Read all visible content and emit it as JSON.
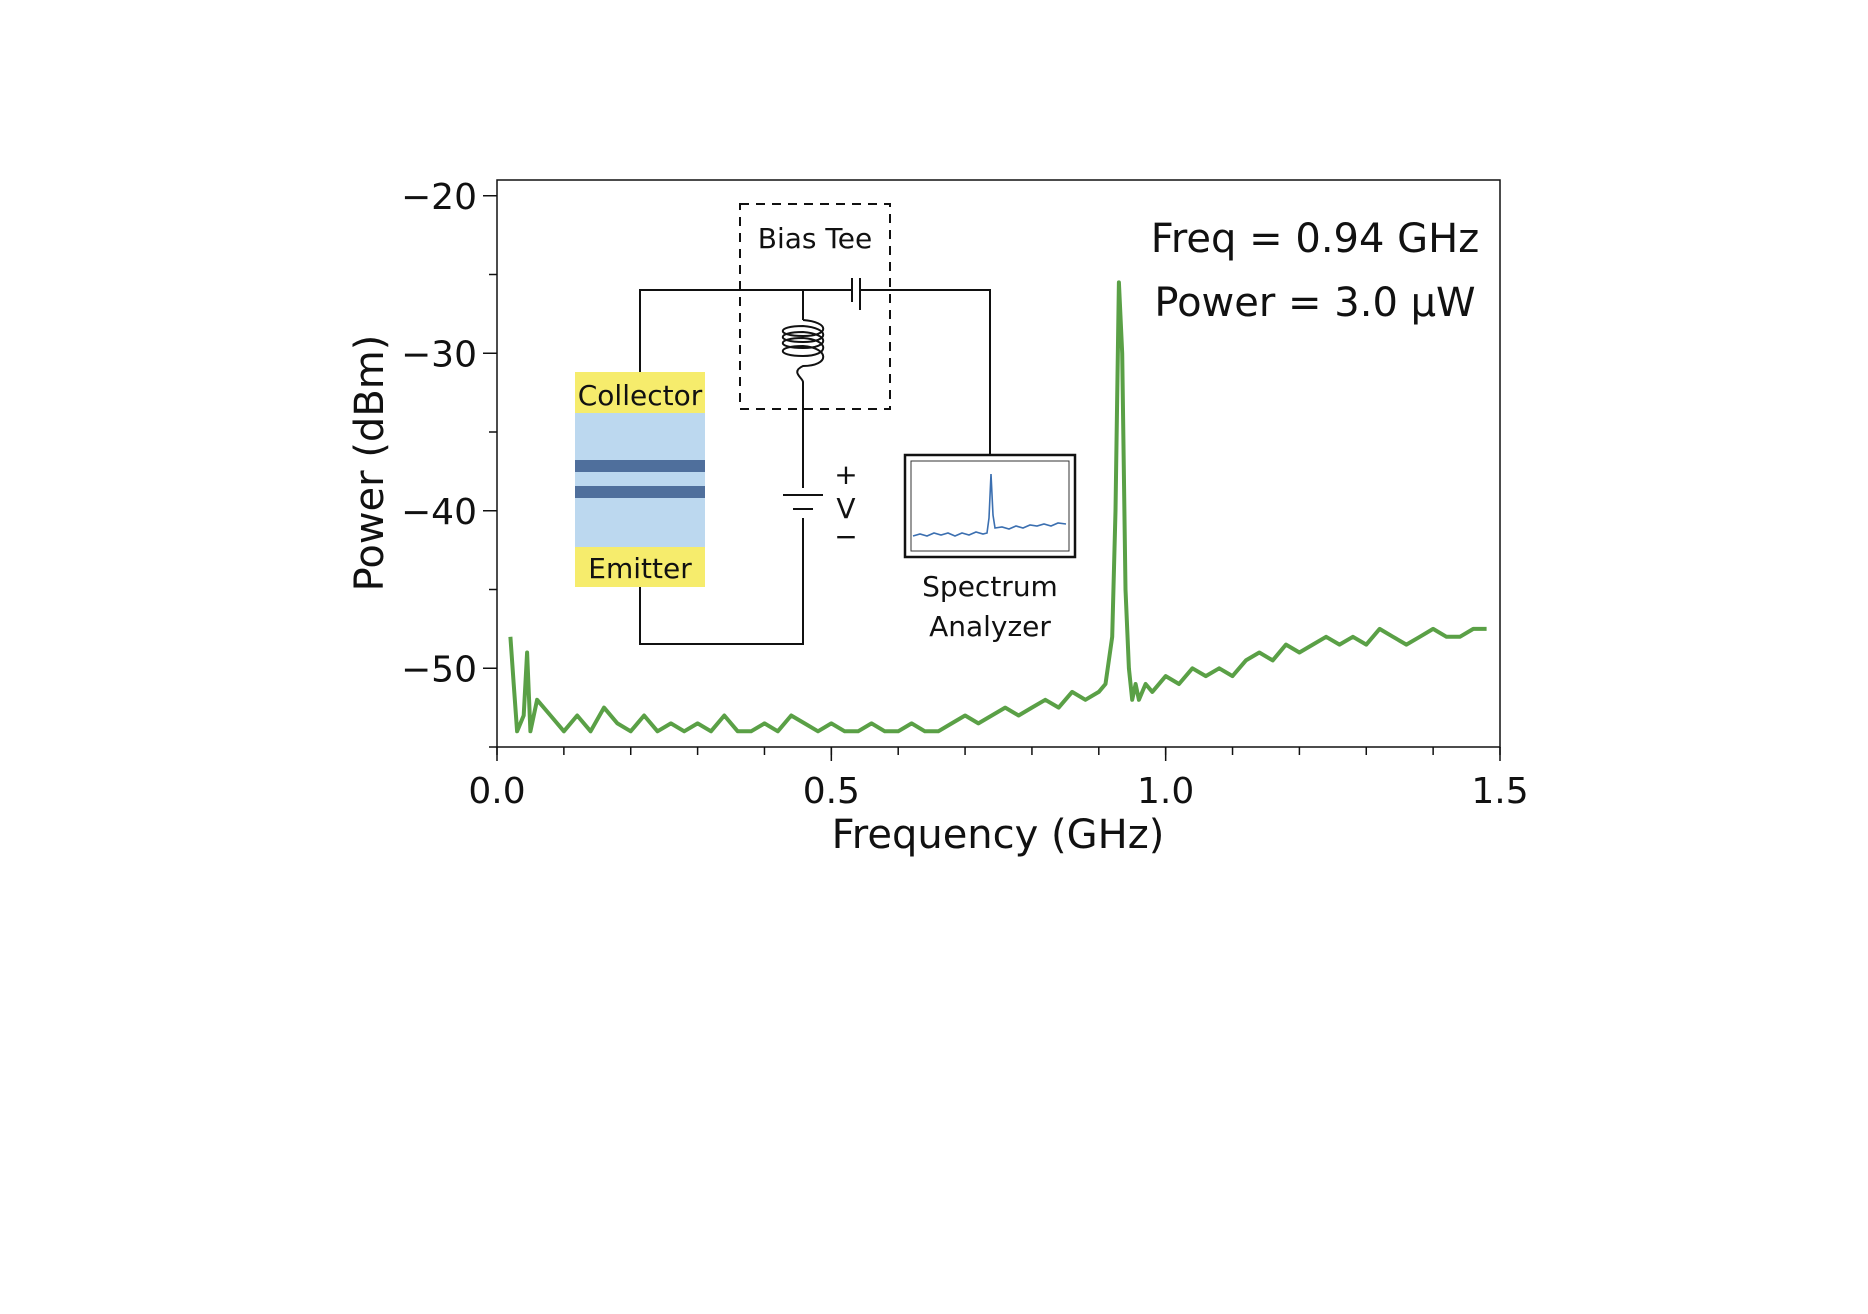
{
  "chart_data": {
    "type": "line",
    "title": "",
    "xlabel": "Frequency (GHz)",
    "ylabel": "Power (dBm)",
    "xlim": [
      0.0,
      1.5
    ],
    "ylim": [
      -55,
      -19
    ],
    "x_ticks": [
      "0.0",
      "0.5",
      "1.0",
      "1.5"
    ],
    "y_ticks": [
      "−20",
      "−30",
      "−40",
      "−50"
    ],
    "x_tick_values": [
      0.0,
      0.5,
      1.0,
      1.5
    ],
    "y_tick_values": [
      -20,
      -30,
      -40,
      -50
    ],
    "grid": false,
    "series": [
      {
        "name": "",
        "color": "#5aa046",
        "x": [
          0.02,
          0.025,
          0.03,
          0.04,
          0.045,
          0.05,
          0.06,
          0.08,
          0.1,
          0.12,
          0.14,
          0.16,
          0.18,
          0.2,
          0.22,
          0.24,
          0.26,
          0.28,
          0.3,
          0.32,
          0.34,
          0.36,
          0.38,
          0.4,
          0.42,
          0.44,
          0.46,
          0.48,
          0.5,
          0.52,
          0.54,
          0.56,
          0.58,
          0.6,
          0.62,
          0.64,
          0.66,
          0.68,
          0.7,
          0.72,
          0.74,
          0.76,
          0.78,
          0.8,
          0.82,
          0.84,
          0.86,
          0.88,
          0.9,
          0.91,
          0.92,
          0.925,
          0.93,
          0.935,
          0.94,
          0.945,
          0.95,
          0.955,
          0.96,
          0.97,
          0.98,
          1.0,
          1.02,
          1.04,
          1.06,
          1.08,
          1.1,
          1.12,
          1.14,
          1.16,
          1.18,
          1.2,
          1.22,
          1.24,
          1.26,
          1.28,
          1.3,
          1.32,
          1.34,
          1.36,
          1.38,
          1.4,
          1.42,
          1.44,
          1.46,
          1.48
        ],
        "y": [
          -48,
          -51,
          -54,
          -53,
          -49,
          -54,
          -52,
          -53,
          -54,
          -53,
          -54,
          -52.5,
          -53.5,
          -54,
          -53,
          -54,
          -53.5,
          -54,
          -53.5,
          -54,
          -53,
          -54,
          -54,
          -53.5,
          -54,
          -53,
          -53.5,
          -54,
          -53.5,
          -54,
          -54,
          -53.5,
          -54,
          -54,
          -53.5,
          -54,
          -54,
          -53.5,
          -53,
          -53.5,
          -53,
          -52.5,
          -53,
          -52.5,
          -52,
          -52.5,
          -51.5,
          -52,
          -51.5,
          -51,
          -48,
          -40,
          -25.5,
          -30,
          -45,
          -50,
          -52,
          -51,
          -52,
          -51,
          -51.5,
          -50.5,
          -51,
          -50,
          -50.5,
          -50,
          -50.5,
          -49.5,
          -49,
          -49.5,
          -48.5,
          -49,
          -48.5,
          -48,
          -48.5,
          -48,
          -48.5,
          -47.5,
          -48,
          -48.5,
          -48,
          -47.5,
          -48,
          -48,
          -47.5,
          -47.5
        ]
      }
    ],
    "annotations": [
      "Freq = 0.94 GHz",
      "Power = 3.0 µW"
    ],
    "inset": {
      "bias_tee_label": "Bias Tee",
      "collector_label": "Collector",
      "emitter_label": "Emitter",
      "plus_label": "+",
      "voltage_label": "V",
      "minus_label": "−",
      "spectrum_analyzer_line1": "Spectrum",
      "spectrum_analyzer_line2": "Analyzer"
    }
  }
}
